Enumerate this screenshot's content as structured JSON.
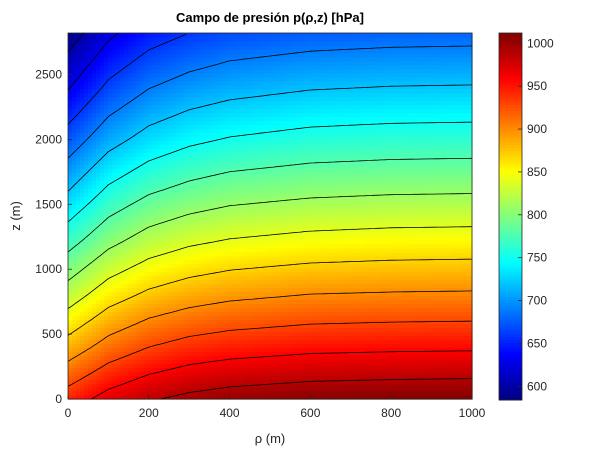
{
  "chart_data": {
    "type": "heatmap",
    "subtype": "filled field with contour lines",
    "title": "Campo de presión p(ρ,z) [hPa]",
    "xlabel": "ρ (m)",
    "ylabel": "z (m)",
    "xlim": [
      0,
      1000
    ],
    "ylim": [
      0,
      2820
    ],
    "xticks": [
      "0",
      "200",
      "400",
      "600",
      "800",
      "1000"
    ],
    "yticks": [
      "0",
      "500",
      "1000",
      "1500",
      "2000",
      "2500"
    ],
    "colormap": "jet",
    "clim": [
      584,
      1012
    ],
    "colorbar_ticks": [
      "600",
      "650",
      "700",
      "750",
      "800",
      "850",
      "900",
      "950",
      "1000"
    ],
    "contour_levels": [
      600,
      630,
      660,
      690,
      720,
      750,
      780,
      810,
      840,
      870,
      900,
      930,
      960,
      990
    ],
    "contour_color": "#000000",
    "grid": false,
    "rho": [
      0,
      100,
      200,
      300,
      400,
      600,
      800,
      1000
    ],
    "z": [
      0,
      400,
      800,
      1200,
      1600,
      2000,
      2400,
      2800
    ],
    "values_by_z": [
      [
        945,
        971,
        987,
        997,
        1003,
        1009,
        1011,
        1012
      ],
      [
        883,
        912,
        930,
        941,
        947,
        953,
        955,
        956
      ],
      [
        825,
        857,
        876,
        887,
        894,
        901,
        903,
        904
      ],
      [
        771,
        804,
        825,
        837,
        844,
        851,
        854,
        855
      ],
      [
        720,
        756,
        777,
        789,
        797,
        804,
        807,
        808
      ],
      [
        673,
        709,
        731,
        744,
        752,
        760,
        763,
        764
      ],
      [
        628,
        666,
        689,
        702,
        710,
        718,
        721,
        722
      ],
      [
        587,
        626,
        649,
        662,
        671,
        678,
        681,
        682
      ]
    ]
  }
}
